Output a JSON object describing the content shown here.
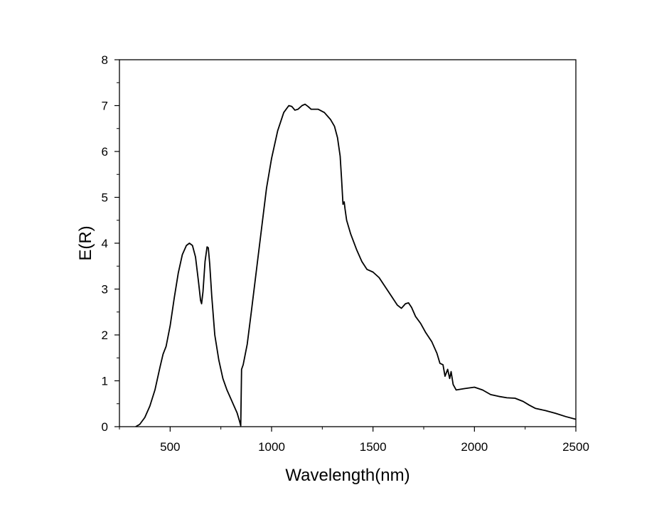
{
  "chart_data": {
    "type": "line",
    "title": "",
    "xlabel": "Wavelength(nm)",
    "ylabel": "E(R)",
    "xlim": [
      250,
      2500
    ],
    "ylim": [
      0,
      8
    ],
    "xticks": [
      500,
      1000,
      1500,
      2000,
      2500
    ],
    "yticks": [
      0,
      1,
      2,
      3,
      4,
      5,
      6,
      7,
      8
    ],
    "grid": false,
    "legend": "none",
    "series": [
      {
        "name": "E(R)",
        "color": "#000000",
        "points": [
          [
            330,
            0
          ],
          [
            350,
            0.05
          ],
          [
            375,
            0.2
          ],
          [
            400,
            0.45
          ],
          [
            425,
            0.8
          ],
          [
            450,
            1.3
          ],
          [
            465,
            1.58
          ],
          [
            480,
            1.75
          ],
          [
            500,
            2.2
          ],
          [
            520,
            2.8
          ],
          [
            540,
            3.35
          ],
          [
            560,
            3.75
          ],
          [
            580,
            3.95
          ],
          [
            595,
            4.0
          ],
          [
            610,
            3.95
          ],
          [
            625,
            3.7
          ],
          [
            640,
            3.15
          ],
          [
            650,
            2.75
          ],
          [
            655,
            2.68
          ],
          [
            662,
            2.95
          ],
          [
            672,
            3.6
          ],
          [
            682,
            3.92
          ],
          [
            688,
            3.9
          ],
          [
            695,
            3.55
          ],
          [
            705,
            2.85
          ],
          [
            720,
            2.0
          ],
          [
            740,
            1.45
          ],
          [
            760,
            1.05
          ],
          [
            780,
            0.8
          ],
          [
            800,
            0.6
          ],
          [
            815,
            0.45
          ],
          [
            830,
            0.3
          ],
          [
            842,
            0.12
          ],
          [
            848,
            0.02
          ],
          [
            852,
            1.25
          ],
          [
            860,
            1.35
          ],
          [
            880,
            1.8
          ],
          [
            900,
            2.5
          ],
          [
            925,
            3.4
          ],
          [
            950,
            4.3
          ],
          [
            975,
            5.2
          ],
          [
            1000,
            5.85
          ],
          [
            1030,
            6.45
          ],
          [
            1060,
            6.85
          ],
          [
            1085,
            7.0
          ],
          [
            1100,
            6.98
          ],
          [
            1115,
            6.9
          ],
          [
            1130,
            6.92
          ],
          [
            1150,
            7.0
          ],
          [
            1165,
            7.03
          ],
          [
            1180,
            6.98
          ],
          [
            1195,
            6.92
          ],
          [
            1210,
            6.92
          ],
          [
            1230,
            6.92
          ],
          [
            1260,
            6.85
          ],
          [
            1290,
            6.7
          ],
          [
            1310,
            6.55
          ],
          [
            1325,
            6.3
          ],
          [
            1338,
            5.9
          ],
          [
            1345,
            5.4
          ],
          [
            1352,
            4.85
          ],
          [
            1358,
            4.9
          ],
          [
            1362,
            4.75
          ],
          [
            1370,
            4.5
          ],
          [
            1390,
            4.2
          ],
          [
            1420,
            3.85
          ],
          [
            1445,
            3.6
          ],
          [
            1470,
            3.43
          ],
          [
            1500,
            3.37
          ],
          [
            1530,
            3.25
          ],
          [
            1560,
            3.05
          ],
          [
            1590,
            2.85
          ],
          [
            1620,
            2.65
          ],
          [
            1640,
            2.58
          ],
          [
            1660,
            2.68
          ],
          [
            1675,
            2.7
          ],
          [
            1690,
            2.6
          ],
          [
            1710,
            2.4
          ],
          [
            1735,
            2.25
          ],
          [
            1760,
            2.05
          ],
          [
            1790,
            1.85
          ],
          [
            1815,
            1.6
          ],
          [
            1830,
            1.38
          ],
          [
            1845,
            1.35
          ],
          [
            1855,
            1.1
          ],
          [
            1868,
            1.25
          ],
          [
            1878,
            1.05
          ],
          [
            1885,
            1.2
          ],
          [
            1895,
            0.92
          ],
          [
            1910,
            0.8
          ],
          [
            1950,
            0.83
          ],
          [
            2000,
            0.86
          ],
          [
            2040,
            0.8
          ],
          [
            2080,
            0.7
          ],
          [
            2120,
            0.66
          ],
          [
            2160,
            0.63
          ],
          [
            2200,
            0.62
          ],
          [
            2240,
            0.55
          ],
          [
            2270,
            0.47
          ],
          [
            2300,
            0.4
          ],
          [
            2350,
            0.35
          ],
          [
            2400,
            0.29
          ],
          [
            2450,
            0.22
          ],
          [
            2500,
            0.16
          ]
        ]
      }
    ]
  }
}
